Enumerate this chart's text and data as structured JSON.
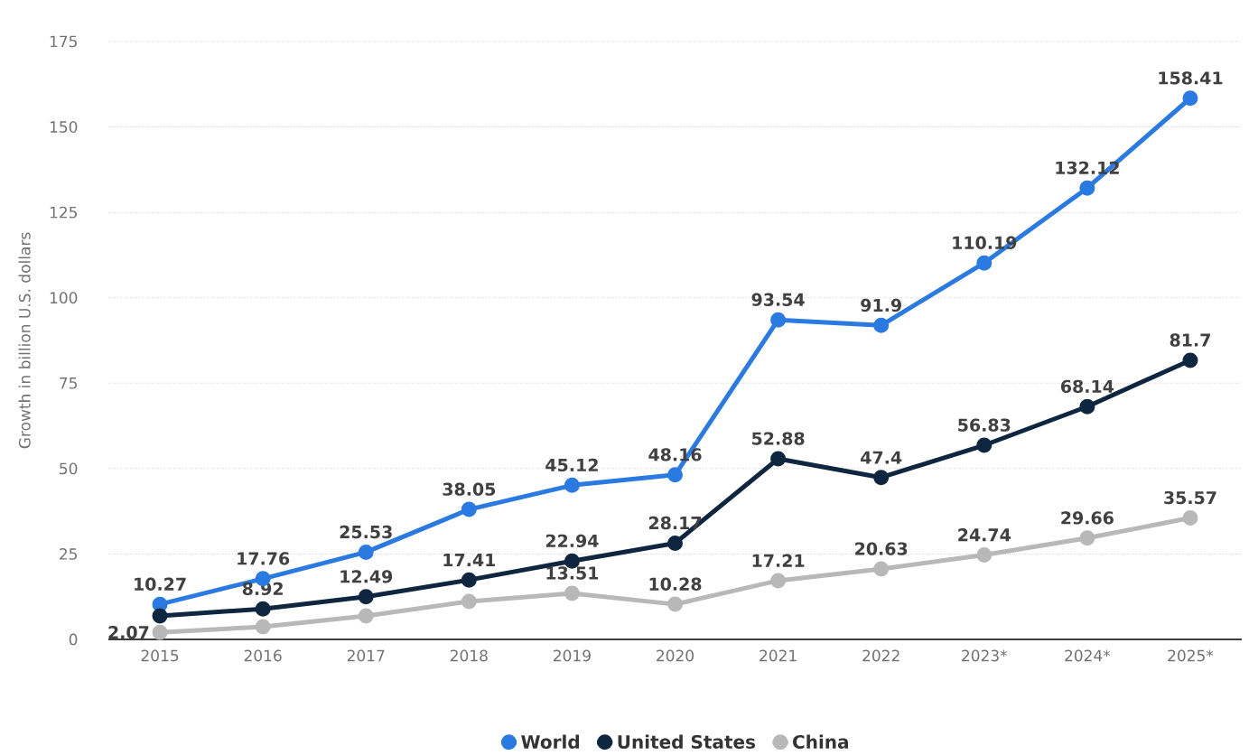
{
  "chart_data": {
    "type": "line",
    "ylabel": "Growth in billion U.S. dollars",
    "categories": [
      "2015",
      "2016",
      "2017",
      "2018",
      "2019",
      "2020",
      "2021",
      "2022",
      "2023*",
      "2024*",
      "2025*"
    ],
    "series": [
      {
        "name": "World",
        "color": "#2a7ae2",
        "values": [
          10.27,
          17.76,
          25.53,
          38.05,
          45.12,
          48.16,
          93.54,
          91.9,
          110.19,
          132.12,
          158.41
        ],
        "value_labels": [
          "10.27",
          "17.76",
          "25.53",
          "38.05",
          "45.12",
          "48.16",
          "93.54",
          "91.9",
          "110.19",
          "132.12",
          "158.41"
        ]
      },
      {
        "name": "United States",
        "color": "#0f2640",
        "values": [
          6.9,
          8.92,
          12.49,
          17.41,
          22.94,
          28.17,
          52.88,
          47.4,
          56.83,
          68.14,
          81.7
        ],
        "value_labels": [
          null,
          "8.92",
          "12.49",
          "17.41",
          "22.94",
          "28.17",
          "52.88",
          "47.4",
          "56.83",
          "68.14",
          "81.7"
        ]
      },
      {
        "name": "China",
        "color": "#b8b8b8",
        "values": [
          2.07,
          3.7,
          6.9,
          11.1,
          13.51,
          10.28,
          17.21,
          20.63,
          24.74,
          29.66,
          35.57
        ],
        "value_labels": [
          "2.07",
          null,
          null,
          null,
          "13.51",
          "10.28",
          "17.21",
          "20.63",
          "24.74",
          "29.66",
          "35.57"
        ]
      }
    ],
    "ylim": [
      0,
      175
    ],
    "yticks": [
      0,
      25,
      50,
      75,
      100,
      125,
      150,
      175
    ],
    "grid": "y",
    "legend": "bottom",
    "marker": "circle"
  }
}
